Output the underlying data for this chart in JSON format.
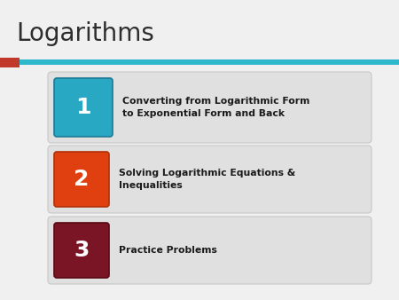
{
  "title": "Logarithms",
  "title_fontsize": 20,
  "title_color": "#2e2e2e",
  "bg_color": "#f0f0f0",
  "accent_red": "#c0392b",
  "separator_teal": "#2eb8cc",
  "items": [
    {
      "number": "1",
      "text": "Converting from Logarithmic Form\nto Exponential Form and Back",
      "box_color": "#29a8c4",
      "box_shadow": "#1e7a96"
    },
    {
      "number": "2",
      "text": "Solving Logarithmic Equations &\nInequalities",
      "box_color": "#e04010",
      "box_shadow": "#b03008"
    },
    {
      "number": "3",
      "text": "Practice Problems",
      "box_color": "#7a1525",
      "box_shadow": "#5a0a15"
    }
  ],
  "card_bg": "#e0e0e0",
  "card_edge": "#c8c8c8",
  "text_color": "#1a1a1a",
  "num_color": "#ffffff"
}
